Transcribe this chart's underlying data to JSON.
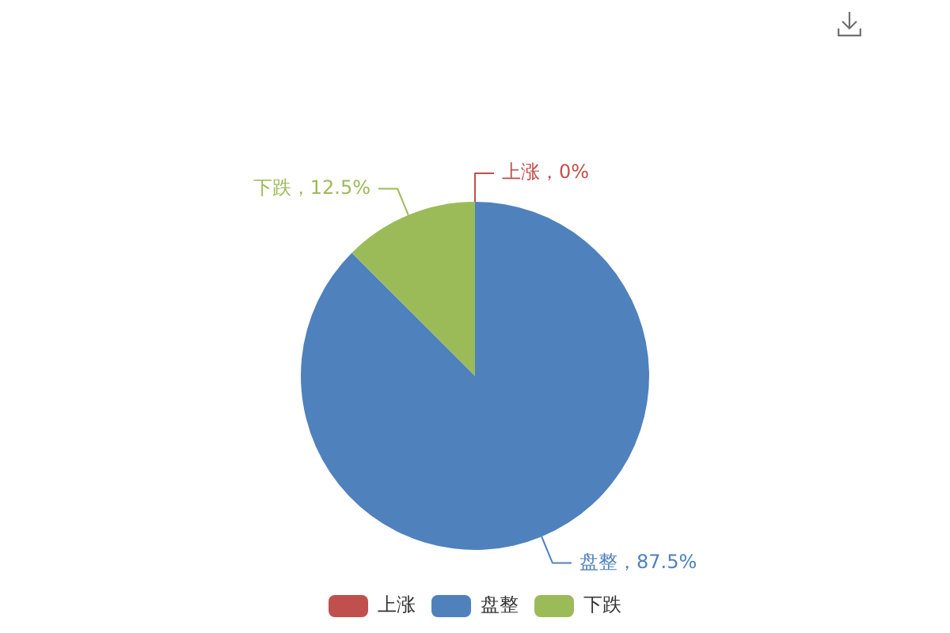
{
  "chart_data": {
    "type": "pie",
    "categories": [
      "上涨",
      "盘整",
      "下跌"
    ],
    "values": [
      0,
      87.5,
      12.5
    ],
    "colors": [
      "#c0504d",
      "#4f81bd",
      "#9bbb59"
    ],
    "value_labels": [
      "上涨，0%",
      "盘整，87.5%",
      "下跌，12.5%"
    ],
    "legend": "bottom"
  }
}
